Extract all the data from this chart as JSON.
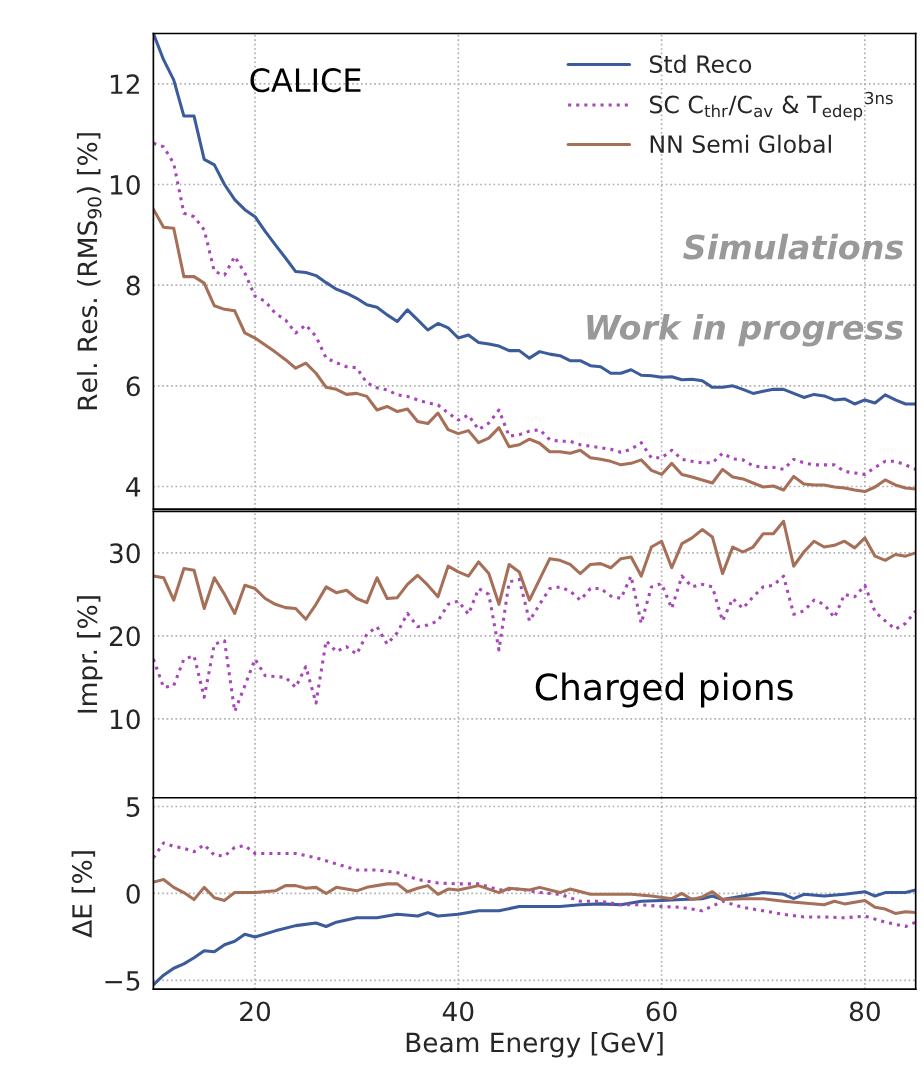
{
  "chart_data": [
    {
      "type": "line",
      "ylabel": "Rel. Res. (RMS$_{90}$) [%]",
      "xlim": [
        10,
        85
      ],
      "xticks": [
        20,
        40,
        60,
        80
      ],
      "ylim": [
        3.55,
        13
      ],
      "yticks": [
        4,
        6,
        8,
        10,
        12
      ],
      "grid": true,
      "legend": "top right",
      "tick_labels": "y",
      "annotations": [
        "CALICE",
        "Simulations",
        "Work in progress"
      ],
      "x": [
        10,
        11,
        12,
        13,
        14,
        15,
        16,
        17,
        18,
        19,
        20,
        21,
        22,
        23,
        24,
        25,
        26,
        27,
        28,
        29,
        30,
        31,
        32,
        33,
        34,
        35,
        36,
        37,
        38,
        39,
        40,
        41,
        42,
        43,
        44,
        45,
        46,
        47,
        48,
        49,
        50,
        51,
        52,
        53,
        54,
        55,
        56,
        57,
        58,
        59,
        60,
        61,
        62,
        63,
        64,
        65,
        66,
        67,
        68,
        69,
        70,
        71,
        72,
        73,
        74,
        75,
        76,
        77,
        78,
        79,
        80,
        81,
        82,
        83,
        84,
        85
      ],
      "series": [
        {
          "name": "Std Reco",
          "color": "#3b5b9b",
          "line_style": "solid",
          "values": [
            13.0,
            12.48,
            12.08,
            11.36,
            11.36,
            10.5,
            10.39,
            10.0,
            9.7,
            9.5,
            9.36,
            9.07,
            8.8,
            8.54,
            8.27,
            8.25,
            8.19,
            8.05,
            7.92,
            7.84,
            7.74,
            7.61,
            7.56,
            7.41,
            7.28,
            7.51,
            7.31,
            7.11,
            7.24,
            7.15,
            6.95,
            7.01,
            6.86,
            6.83,
            6.79,
            6.7,
            6.7,
            6.55,
            6.68,
            6.63,
            6.6,
            6.5,
            6.5,
            6.4,
            6.38,
            6.25,
            6.25,
            6.32,
            6.21,
            6.2,
            6.17,
            6.18,
            6.12,
            6.13,
            6.1,
            5.97,
            5.97,
            6.0,
            5.93,
            5.85,
            5.89,
            5.93,
            5.93,
            5.85,
            5.77,
            5.83,
            5.8,
            5.72,
            5.74,
            5.64,
            5.72,
            5.66,
            5.82,
            5.72,
            5.64,
            5.64
          ]
        },
        {
          "name": "SC C$_{thr}$/C$_{av}$ & T$_{edep}$$^{3ns}$",
          "color": "#a845b8",
          "line_style": "dotted",
          "values": [
            10.82,
            10.75,
            10.42,
            9.43,
            9.36,
            9.1,
            8.27,
            8.2,
            8.57,
            8.24,
            7.78,
            7.68,
            7.44,
            7.31,
            7.05,
            7.21,
            6.98,
            6.55,
            6.46,
            6.38,
            6.36,
            6.06,
            5.96,
            5.92,
            5.82,
            5.79,
            5.72,
            5.66,
            5.62,
            5.46,
            5.32,
            5.42,
            5.13,
            5.26,
            5.52,
            5.0,
            5.03,
            5.1,
            5.13,
            4.93,
            4.9,
            4.9,
            4.83,
            4.8,
            4.77,
            4.74,
            4.68,
            4.74,
            4.87,
            4.57,
            4.57,
            4.72,
            4.54,
            4.5,
            4.47,
            4.47,
            4.66,
            4.55,
            4.53,
            4.41,
            4.38,
            4.38,
            4.34,
            4.54,
            4.47,
            4.43,
            4.43,
            4.43,
            4.3,
            4.27,
            4.24,
            4.38,
            4.5,
            4.5,
            4.43,
            4.34
          ]
        },
        {
          "name": "NN Semi Global",
          "color": "#a66f58",
          "line_style": "solid",
          "values": [
            9.51,
            9.15,
            9.13,
            8.17,
            8.17,
            8.04,
            7.59,
            7.52,
            7.49,
            7.05,
            6.95,
            6.81,
            6.67,
            6.52,
            6.35,
            6.45,
            6.25,
            5.97,
            5.93,
            5.83,
            5.85,
            5.79,
            5.52,
            5.59,
            5.49,
            5.54,
            5.29,
            5.25,
            5.46,
            5.13,
            5.05,
            5.11,
            4.87,
            4.96,
            5.17,
            4.79,
            4.83,
            4.94,
            4.86,
            4.69,
            4.69,
            4.66,
            4.72,
            4.57,
            4.54,
            4.5,
            4.43,
            4.46,
            4.53,
            4.32,
            4.24,
            4.46,
            4.24,
            4.19,
            4.13,
            4.07,
            4.34,
            4.19,
            4.15,
            4.07,
            3.99,
            4.01,
            3.93,
            4.2,
            4.05,
            4.03,
            4.03,
            3.99,
            3.97,
            3.93,
            3.9,
            3.99,
            4.13,
            4.03,
            3.97,
            3.95
          ]
        }
      ]
    },
    {
      "type": "line",
      "ylabel": "Impr. [%]",
      "xlim": [
        10,
        85
      ],
      "xticks": [
        20,
        40,
        60,
        80
      ],
      "ylim": [
        0.5,
        35
      ],
      "yticks": [
        10,
        20,
        30
      ],
      "grid": true,
      "tick_labels": "y",
      "annotations": [
        "Charged pions"
      ],
      "x": [
        10,
        11,
        12,
        13,
        14,
        15,
        16,
        17,
        18,
        19,
        20,
        21,
        22,
        23,
        24,
        25,
        26,
        27,
        28,
        29,
        30,
        31,
        32,
        33,
        34,
        35,
        36,
        37,
        38,
        39,
        40,
        41,
        42,
        43,
        44,
        45,
        46,
        47,
        48,
        49,
        50,
        51,
        52,
        53,
        54,
        55,
        56,
        57,
        58,
        59,
        60,
        61,
        62,
        63,
        64,
        65,
        66,
        67,
        68,
        69,
        70,
        71,
        72,
        73,
        74,
        75,
        76,
        77,
        78,
        79,
        80,
        81,
        82,
        83,
        84,
        85
      ],
      "series": [
        {
          "color": "#a845b8",
          "line_style": "dotted",
          "values": [
            17.2,
            13.8,
            14.0,
            17.2,
            17.6,
            12.6,
            19.0,
            19.4,
            10.9,
            14.0,
            17.2,
            15.2,
            15.1,
            15.0,
            13.8,
            16.3,
            11.9,
            19.4,
            18.1,
            18.7,
            17.8,
            20.2,
            21.1,
            19.0,
            20.4,
            22.7,
            21.1,
            21.3,
            21.8,
            23.8,
            24.2,
            22.6,
            25.7,
            25.0,
            18.3,
            26.5,
            26.8,
            21.8,
            23.8,
            25.7,
            25.9,
            25.4,
            24.3,
            25.7,
            25.7,
            24.8,
            24.5,
            27.2,
            21.5,
            25.9,
            26.3,
            23.3,
            27.2,
            25.9,
            26.2,
            25.9,
            21.8,
            24.5,
            23.3,
            24.7,
            25.9,
            26.1,
            27.2,
            22.6,
            23.0,
            24.3,
            23.8,
            22.2,
            25.0,
            24.7,
            26.1,
            22.9,
            21.8,
            20.8,
            21.5,
            23.0
          ]
        },
        {
          "color": "#a66f58",
          "line_style": "solid",
          "values": [
            27.2,
            27.0,
            24.3,
            28.1,
            27.9,
            23.3,
            27.0,
            25.0,
            22.7,
            26.1,
            25.7,
            24.5,
            23.8,
            23.4,
            23.3,
            22.0,
            23.8,
            25.9,
            25.2,
            25.5,
            24.5,
            24.0,
            27.0,
            24.5,
            24.6,
            26.2,
            27.3,
            26.1,
            24.7,
            28.4,
            27.7,
            27.2,
            28.9,
            27.5,
            23.8,
            28.6,
            27.7,
            24.3,
            26.8,
            29.3,
            29.1,
            28.6,
            27.5,
            28.6,
            28.7,
            28.2,
            29.3,
            29.5,
            27.2,
            30.7,
            31.4,
            28.2,
            31.1,
            31.8,
            32.8,
            31.9,
            27.5,
            30.7,
            30.1,
            30.7,
            32.3,
            32.3,
            33.8,
            28.4,
            30.1,
            31.4,
            30.7,
            30.9,
            31.4,
            30.6,
            31.8,
            29.6,
            29.1,
            29.8,
            29.6,
            30.0
          ]
        }
      ]
    },
    {
      "type": "line",
      "ylabel": "ΔE [%]",
      "xlabel": "Beam Energy [GeV]",
      "xlim": [
        10,
        85
      ],
      "xticks": [
        20,
        40,
        60,
        80
      ],
      "ylim": [
        -5.5,
        5.5
      ],
      "yticks": [
        {
          "value": -5,
          "label": "−5"
        },
        0,
        5
      ],
      "grid": true,
      "series": [
        {
          "color": "#3b5b9b",
          "line_style": "solid",
          "x": [
            10,
            11,
            12,
            13,
            14,
            15,
            16,
            17,
            18,
            19,
            20,
            22,
            24,
            26,
            27,
            28,
            30,
            32,
            34,
            36,
            37,
            38,
            40,
            42,
            44,
            46,
            48,
            50,
            52,
            54,
            56,
            58,
            60,
            62,
            64,
            65,
            66,
            68,
            70,
            72,
            73,
            74,
            76,
            78,
            80,
            81,
            82,
            84,
            85
          ],
          "values": [
            -5.25,
            -4.7,
            -4.3,
            -4.05,
            -3.7,
            -3.3,
            -3.35,
            -2.95,
            -2.75,
            -2.35,
            -2.5,
            -2.15,
            -1.85,
            -1.7,
            -1.9,
            -1.65,
            -1.4,
            -1.4,
            -1.2,
            -1.3,
            -1.1,
            -1.3,
            -1.2,
            -1.0,
            -1.0,
            -0.75,
            -0.75,
            -0.75,
            -0.65,
            -0.6,
            -0.65,
            -0.45,
            -0.4,
            -0.35,
            -0.3,
            -0.15,
            -0.35,
            -0.15,
            0.05,
            -0.05,
            -0.3,
            -0.05,
            -0.15,
            -0.05,
            0.1,
            -0.15,
            0.05,
            0.05,
            0.2
          ]
        },
        {
          "color": "#a845b8",
          "line_style": "dotted",
          "x": [
            10,
            11,
            12,
            13,
            14,
            15,
            16,
            17,
            18,
            19,
            20,
            22,
            24,
            26,
            28,
            30,
            32,
            34,
            36,
            38,
            40,
            42,
            44,
            46,
            48,
            50,
            52,
            54,
            56,
            58,
            60,
            62,
            64,
            66,
            68,
            70,
            72,
            74,
            76,
            78,
            80,
            82,
            84,
            85
          ],
          "values": [
            2.05,
            2.9,
            2.7,
            2.6,
            2.4,
            2.8,
            2.2,
            2.15,
            2.65,
            2.75,
            2.3,
            2.3,
            2.3,
            2.05,
            1.7,
            1.35,
            1.35,
            1.2,
            0.8,
            0.6,
            0.55,
            0.55,
            0.2,
            0.25,
            0.05,
            -0.05,
            -0.45,
            -0.45,
            -0.65,
            -0.65,
            -0.75,
            -0.8,
            -1.0,
            -0.45,
            -0.8,
            -1.0,
            -1.2,
            -1.35,
            -1.35,
            -1.4,
            -1.3,
            -1.65,
            -1.9,
            -1.65
          ]
        },
        {
          "color": "#a66f58",
          "line_style": "solid",
          "x": [
            10,
            11,
            12,
            13,
            14,
            15,
            16,
            17,
            18,
            20,
            22,
            23,
            24,
            25,
            26,
            27,
            28,
            30,
            31,
            33,
            34,
            35,
            36,
            37,
            38,
            39,
            40,
            42,
            44,
            45,
            47,
            48,
            50,
            51,
            53,
            55,
            57,
            59,
            61,
            62,
            63,
            64,
            65,
            66,
            68,
            70,
            72,
            74,
            76,
            77,
            78,
            80,
            81,
            82,
            83,
            84,
            85
          ],
          "values": [
            0.65,
            0.8,
            0.35,
            0.05,
            -0.35,
            0.35,
            -0.25,
            -0.4,
            0.05,
            0.05,
            0.15,
            0.45,
            0.45,
            0.3,
            0.35,
            0.0,
            0.35,
            0.15,
            0.35,
            0.55,
            0.55,
            0.1,
            0.3,
            0.45,
            -0.05,
            0.25,
            0.2,
            0.45,
            0.05,
            0.3,
            0.2,
            0.35,
            0.05,
            0.25,
            -0.05,
            -0.05,
            -0.05,
            -0.15,
            -0.3,
            0.0,
            -0.35,
            -0.2,
            0.1,
            -0.35,
            -0.3,
            -0.3,
            -0.45,
            -0.55,
            -0.65,
            -0.45,
            -0.6,
            -0.4,
            -0.8,
            -0.9,
            -1.15,
            -1.05,
            -1.1
          ]
        }
      ]
    }
  ]
}
